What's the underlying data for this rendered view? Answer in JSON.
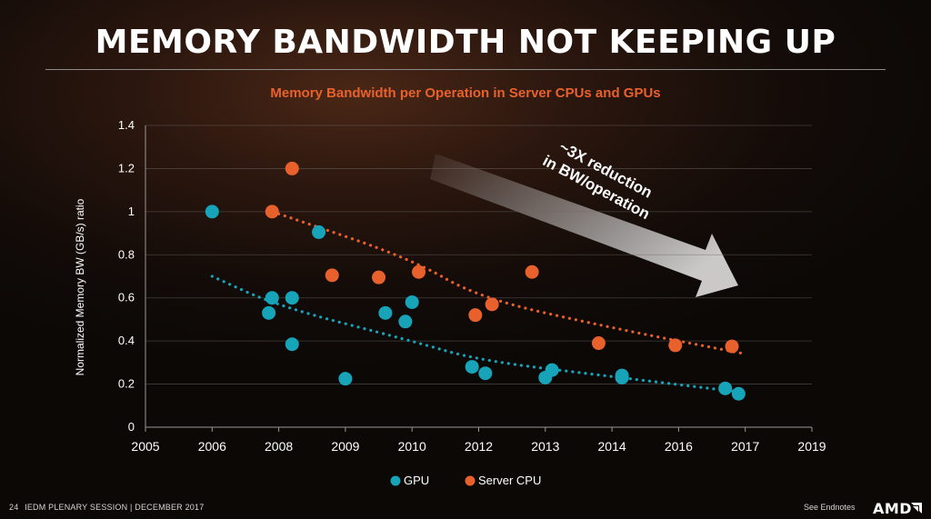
{
  "slide": {
    "title": "MEMORY BANDWIDTH NOT KEEPING UP",
    "footer_page": "24",
    "footer_text": "IEDM PLENARY SESSION  |  DECEMBER 2017",
    "endnotes": "See Endnotes",
    "logo_text": "AMD"
  },
  "colors": {
    "gpu": "#17a3b8",
    "cpu": "#e8612c",
    "title_orange": "#e8612c",
    "axis": "#ffffff",
    "grid": "#6e6a68"
  },
  "chart_data": {
    "type": "scatter",
    "title": "Memory Bandwidth per Operation in Server CPUs and GPUs",
    "xlabel": "",
    "ylabel": "Normalized Memory BW (GB/s) ratio",
    "x_ticks": [
      "2005",
      "2006",
      "2008",
      "2009",
      "2010",
      "2012",
      "2013",
      "2014",
      "2016",
      "2017",
      "2019"
    ],
    "y_ticks": [
      "0",
      "0.2",
      "0.4",
      "0.6",
      "0.8",
      "1",
      "1.2",
      "1.4"
    ],
    "ylim": [
      0,
      1.4
    ],
    "grid": "horizontal",
    "legend_position": "bottom",
    "annotation": [
      "~3X reduction",
      "in BW/operation"
    ],
    "series": [
      {
        "name": "GPU",
        "color": "#17a3b8",
        "points": [
          [
            2006.0,
            1.0
          ],
          [
            2007.7,
            0.53
          ],
          [
            2007.8,
            0.6
          ],
          [
            2008.2,
            0.6
          ],
          [
            2008.2,
            0.385
          ],
          [
            2008.6,
            0.905
          ],
          [
            2009.0,
            0.225
          ],
          [
            2009.6,
            0.53
          ],
          [
            2009.9,
            0.49
          ],
          [
            2010.0,
            0.58
          ],
          [
            2011.8,
            0.28
          ],
          [
            2012.1,
            0.25
          ],
          [
            2013.0,
            0.23
          ],
          [
            2013.1,
            0.265
          ],
          [
            2014.3,
            0.24
          ],
          [
            2014.3,
            0.23
          ],
          [
            2016.7,
            0.18
          ],
          [
            2016.9,
            0.155
          ]
        ],
        "trend": [
          [
            2006.0,
            0.7
          ],
          [
            2008.0,
            0.56
          ],
          [
            2010.0,
            0.4
          ],
          [
            2012.0,
            0.31
          ],
          [
            2014.0,
            0.235
          ],
          [
            2017.0,
            0.16
          ]
        ]
      },
      {
        "name": "Server CPU",
        "color": "#e8612c",
        "points": [
          [
            2007.8,
            1.0
          ],
          [
            2008.2,
            1.2
          ],
          [
            2008.8,
            0.705
          ],
          [
            2009.5,
            0.695
          ],
          [
            2010.2,
            0.72
          ],
          [
            2011.9,
            0.52
          ],
          [
            2012.2,
            0.57
          ],
          [
            2012.8,
            0.72
          ],
          [
            2013.8,
            0.39
          ],
          [
            2015.9,
            0.38
          ],
          [
            2016.8,
            0.375
          ]
        ],
        "trend": [
          [
            2008.0,
            0.99
          ],
          [
            2010.0,
            0.78
          ],
          [
            2012.0,
            0.6
          ],
          [
            2014.0,
            0.46
          ],
          [
            2017.0,
            0.34
          ]
        ]
      }
    ]
  }
}
